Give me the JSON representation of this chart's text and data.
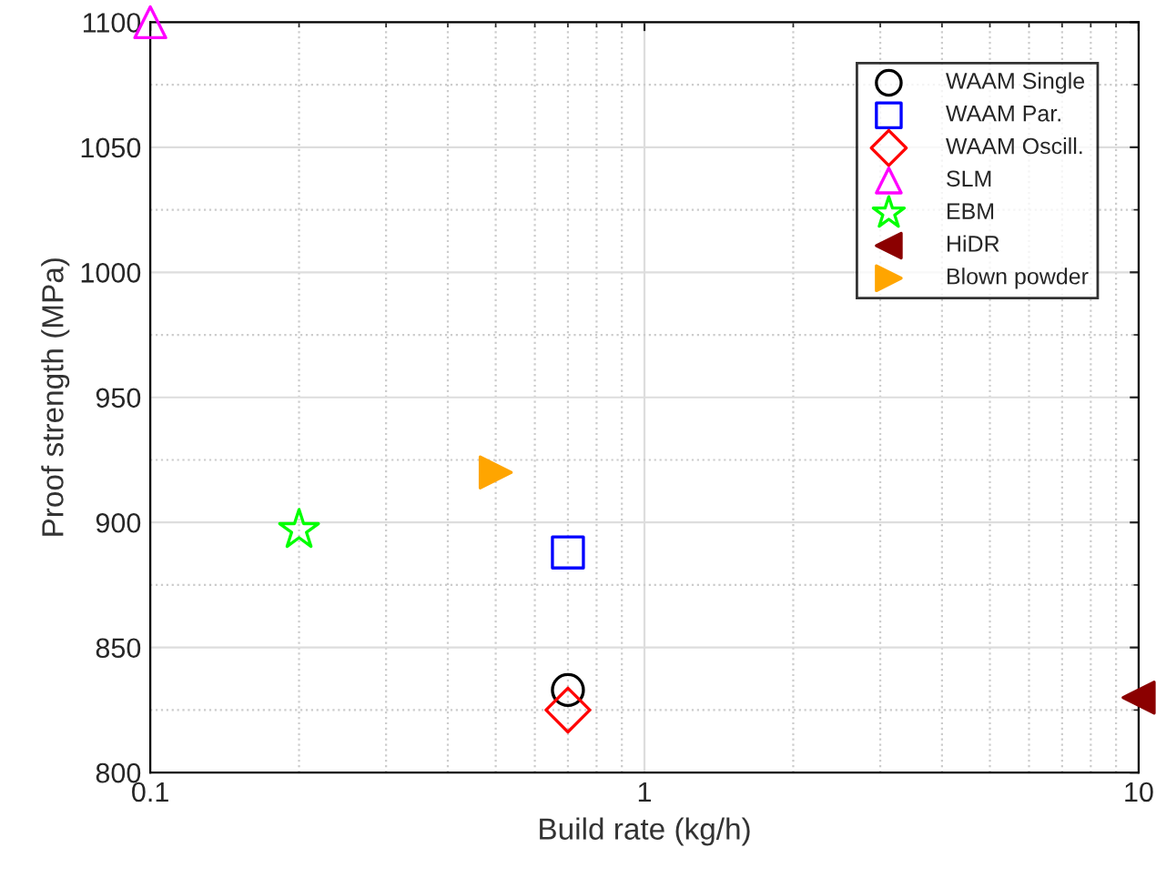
{
  "chart_data": {
    "type": "scatter",
    "xlabel": "Build rate (kg/h)",
    "ylabel": "Proof strength (MPa)",
    "log": "x",
    "xlim": [
      0.1,
      10
    ],
    "xticks": [
      0.1,
      1,
      10
    ],
    "ylim": [
      800,
      1100
    ],
    "yticks": [
      800,
      850,
      900,
      950,
      1000,
      1050,
      1100
    ],
    "grid": true,
    "legend": "top right",
    "series": [
      {
        "name": "WAAM Single",
        "color": "#000000",
        "marker": "circle",
        "x": [
          0.7
        ],
        "values": [
          833
        ]
      },
      {
        "name": "WAAM Par.",
        "color": "#0000ff",
        "marker": "square",
        "x": [
          0.7
        ],
        "values": [
          888
        ]
      },
      {
        "name": "WAAM Oscill.",
        "color": "#ff0000",
        "marker": "diamond",
        "x": [
          0.7
        ],
        "values": [
          825
        ]
      },
      {
        "name": "SLM",
        "color": "#ff00ff",
        "marker": "triangle",
        "x": [
          0.1
        ],
        "values": [
          1100
        ]
      },
      {
        "name": "EBM",
        "color": "#00ff00",
        "marker": "star",
        "x": [
          0.2
        ],
        "values": [
          897
        ]
      },
      {
        "name": "HiDR",
        "color": "#8b0000",
        "marker": "triangle-left",
        "x": [
          10
        ],
        "values": [
          830
        ]
      },
      {
        "name": "Blown powder",
        "color": "#ffa500",
        "marker": "triangle-right",
        "x": [
          0.5
        ],
        "values": [
          920
        ]
      }
    ]
  }
}
